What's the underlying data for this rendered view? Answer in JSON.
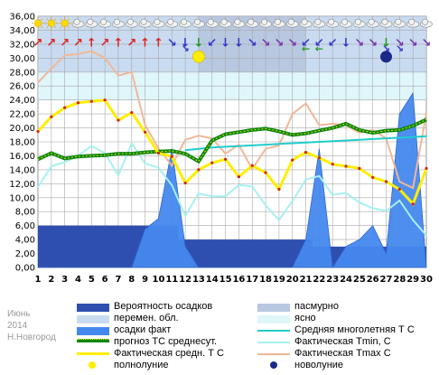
{
  "chart_data": {
    "type": "line",
    "title": "",
    "xlabel": "",
    "ylabel": "",
    "xlim": [
      1,
      30
    ],
    "ylim": [
      0,
      36
    ],
    "y_ticks": [
      "0,00",
      "2,00",
      "4,00",
      "6,00",
      "8,00",
      "10,00",
      "12,00",
      "14,00",
      "16,00",
      "18,00",
      "20,00",
      "22,00",
      "24,00",
      "26,00",
      "28,00",
      "30,00",
      "32,00",
      "34,00",
      "36,00"
    ],
    "x_ticks": [
      "1",
      "2",
      "3",
      "4",
      "5",
      "6",
      "7",
      "8",
      "9",
      "10",
      "11",
      "12",
      "13",
      "14",
      "15",
      "16",
      "17",
      "18",
      "19",
      "20",
      "21",
      "22",
      "23",
      "24",
      "25",
      "26",
      "27",
      "28",
      "29",
      "30"
    ],
    "grid": true,
    "sky_band": [
      {
        "day_from": 1,
        "day_to": 13,
        "state": "перемен. обл."
      },
      {
        "day_from": 13,
        "day_to": 21,
        "state": "пасмурно"
      },
      {
        "day_from": 21,
        "day_to": 30,
        "state": "перемен. обл."
      }
    ],
    "series": [
      {
        "name": "Вероятность осадков",
        "color": "#3355bb",
        "x": [
          1,
          2,
          3,
          4,
          5,
          6,
          7,
          8,
          9,
          10,
          11,
          12,
          13,
          14,
          15,
          16,
          17,
          18,
          19,
          20,
          21,
          22,
          23,
          24,
          25,
          26,
          27,
          28,
          29,
          30
        ],
        "values": [
          6,
          6,
          6,
          6,
          6,
          6,
          6,
          6,
          6,
          6,
          6,
          4,
          4,
          4,
          4,
          4,
          4,
          4,
          4,
          4,
          4,
          3,
          3,
          3,
          3,
          3,
          3,
          3,
          3,
          3
        ]
      },
      {
        "name": "осадки факт",
        "color": "#4488ee",
        "x": [
          1,
          2,
          3,
          4,
          5,
          6,
          7,
          8,
          9,
          10,
          11,
          12,
          13,
          14,
          15,
          16,
          17,
          18,
          19,
          20,
          21,
          22,
          23,
          24,
          25,
          26,
          27,
          28,
          29,
          30
        ],
        "values": [
          0,
          0,
          0,
          0,
          0,
          0,
          0,
          0,
          5.5,
          7,
          17,
          3,
          0,
          0,
          0,
          0,
          0,
          0,
          0,
          0,
          4,
          17,
          0,
          3,
          4,
          6,
          2,
          22,
          25,
          0
        ]
      },
      {
        "name": "прогноз ТС среднесут.",
        "color": "#118811",
        "x": [
          1,
          2,
          3,
          4,
          5,
          6,
          7,
          8,
          9,
          10,
          11,
          12,
          13,
          14,
          15,
          16,
          17,
          18,
          19,
          20,
          21,
          22,
          23,
          24,
          25,
          26,
          27,
          28,
          29,
          30
        ],
        "values": [
          15.5,
          16.4,
          15.6,
          15.9,
          16,
          16.1,
          16.3,
          16.3,
          16.5,
          16.6,
          16.7,
          16.3,
          15.2,
          18.2,
          19.1,
          19.4,
          19.7,
          19.9,
          19.5,
          19,
          19.2,
          19.6,
          20,
          20.6,
          19.7,
          19.3,
          19.6,
          19.7,
          20.3,
          21.2
        ]
      },
      {
        "name": "Средняя многолетняя Т С",
        "color": "#22cccc",
        "x": [
          12,
          13,
          14,
          15,
          16,
          17,
          18,
          19,
          20,
          21,
          22,
          23,
          24,
          25,
          26,
          27,
          28,
          29,
          30
        ],
        "values": [
          16.8,
          17.0,
          17.2,
          17.3,
          17.4,
          17.5,
          17.6,
          17.7,
          17.8,
          17.9,
          18.0,
          18.1,
          18.2,
          18.3,
          18.4,
          18.5,
          18.6,
          18.7,
          18.8
        ]
      },
      {
        "name": "Фактическая Tmin, С",
        "color": "#a6f0f0",
        "x": [
          1,
          2,
          3,
          4,
          5,
          6,
          7,
          8,
          9,
          10,
          11,
          12,
          13,
          14,
          15,
          16,
          17,
          18,
          19,
          20,
          21,
          22,
          23,
          24,
          25,
          26,
          27,
          28,
          29,
          30
        ],
        "values": [
          11.5,
          14.5,
          15.1,
          16,
          17.4,
          16.4,
          13.2,
          17.8,
          14.9,
          14.3,
          11.8,
          7.4,
          10.6,
          10.2,
          10.2,
          11.8,
          11.6,
          8.9,
          6.8,
          9.5,
          12.6,
          13.1,
          10.4,
          10.7,
          9.3,
          8.5,
          8.1,
          9.6,
          6.8,
          4.6
        ]
      },
      {
        "name": "Фактическая Tmax C",
        "color": "#f0b898",
        "x": [
          1,
          2,
          3,
          4,
          5,
          6,
          7,
          8,
          9,
          10,
          11,
          12,
          13,
          14,
          15,
          16,
          17,
          18,
          19,
          20,
          21,
          22,
          23,
          24,
          25,
          26,
          27,
          28,
          29,
          30
        ],
        "values": [
          26.5,
          28.5,
          30.4,
          30.6,
          31,
          30,
          27.5,
          28,
          20.4,
          17.1,
          14.6,
          18.3,
          18.9,
          18.5,
          16.3,
          17.6,
          14.1,
          17,
          17.5,
          22,
          23.5,
          20.4,
          20.6,
          20.4,
          19.3,
          19.7,
          18.5,
          12.3,
          11.4,
          22.1
        ]
      },
      {
        "name": "Фактическая средн. Т С",
        "color": "#ffee00",
        "x": [
          1,
          2,
          3,
          4,
          5,
          6,
          7,
          8,
          9,
          10,
          11,
          12,
          13,
          14,
          15,
          16,
          17,
          18,
          19,
          20,
          21,
          22,
          23,
          24,
          25,
          26,
          27,
          28,
          29,
          30
        ],
        "values": [
          19.5,
          21.6,
          22.9,
          23.6,
          23.8,
          24,
          21.1,
          22.2,
          19.4,
          16.4,
          15.9,
          12.1,
          14,
          15,
          15.5,
          13,
          14.6,
          13.6,
          11.2,
          15.4,
          16.5,
          15.7,
          14.8,
          14.5,
          14.2,
          12.9,
          12.3,
          11.2,
          9.1,
          14.2
        ]
      }
    ],
    "full_moon_day": 13,
    "new_moon_day": 27,
    "moon_level": 30.2,
    "weather_icons": {
      "sun_days": [
        1,
        2,
        3
      ],
      "cloud_days": [
        4,
        5,
        6,
        7,
        8,
        9,
        10,
        11,
        12,
        13,
        14,
        15,
        16,
        17,
        18,
        19,
        20,
        21,
        22,
        23,
        24,
        25,
        26,
        27,
        28,
        29,
        30
      ]
    },
    "wind_arrows": [
      {
        "day": 1,
        "dir": "↗",
        "color": "#dd2222"
      },
      {
        "day": 2,
        "dir": "↗",
        "color": "#dd2222"
      },
      {
        "day": 3,
        "dir": "↗",
        "color": "#dd2222"
      },
      {
        "day": 4,
        "dir": "↗",
        "color": "#dd2222"
      },
      {
        "day": 5,
        "dir": "↑",
        "color": "#dd2222"
      },
      {
        "day": 6,
        "dir": "↗",
        "color": "#dd2222"
      },
      {
        "day": 7,
        "dir": "↑",
        "color": "#dd2222"
      },
      {
        "day": 8,
        "dir": "↗",
        "color": "#dd2222"
      },
      {
        "day": 9,
        "dir": "↑",
        "color": "#dd2222"
      },
      {
        "day": 10,
        "dir": "↑",
        "color": "#dd2222"
      },
      {
        "day": 11,
        "dir": "↘",
        "color": "#3333cc"
      },
      {
        "day": 12,
        "dir": "↓",
        "color": "#3333cc"
      },
      {
        "day": 13,
        "dir": "↓",
        "color": "#229922"
      },
      {
        "day": 14,
        "dir": "↙",
        "color": "#3333cc"
      },
      {
        "day": 15,
        "dir": "↓",
        "color": "#3333cc"
      },
      {
        "day": 16,
        "dir": "↓",
        "color": "#3333cc"
      },
      {
        "day": 17,
        "dir": "↘",
        "color": "#3333cc"
      },
      {
        "day": 18,
        "dir": "↘",
        "color": "#7733aa"
      },
      {
        "day": 19,
        "dir": "↘",
        "color": "#7733aa"
      },
      {
        "day": 20,
        "dir": "↘",
        "color": "#7733aa"
      },
      {
        "day": 21,
        "dir": "↙",
        "color": "#3333cc"
      },
      {
        "day": 22,
        "dir": "↙",
        "color": "#3333cc"
      },
      {
        "day": 23,
        "dir": "↙",
        "color": "#3333cc"
      },
      {
        "day": 24,
        "dir": "↓",
        "color": "#3333cc"
      },
      {
        "day": 25,
        "dir": "↘",
        "color": "#7733aa"
      },
      {
        "day": 26,
        "dir": "↘",
        "color": "#7733aa"
      },
      {
        "day": 27,
        "dir": "↓",
        "color": "#229922"
      },
      {
        "day": 28,
        "dir": "↘",
        "color": "#7733aa"
      },
      {
        "day": 29,
        "dir": "↘",
        "color": "#7733aa"
      },
      {
        "day": 30,
        "dir": "↘",
        "color": "#7733aa"
      }
    ],
    "mid_wind_arrows": [
      {
        "day": 12,
        "dir": "↘",
        "color": "#3333cc"
      },
      {
        "day": 21,
        "dir": "←",
        "color": "#229922"
      },
      {
        "day": 22,
        "dir": "←",
        "color": "#229922"
      },
      {
        "day": 27,
        "dir": "↘",
        "color": "#3333cc"
      },
      {
        "day": 28,
        "dir": "↘",
        "color": "#3333cc"
      }
    ],
    "colors": {
      "plot_bg": "#ffffff",
      "variable_cloud": "#c9dbf0",
      "overcast": "#b8c8e0",
      "clear": "#dff6fb",
      "grid": "#a8a8a8",
      "full_moon": "#ffee00",
      "new_moon": "#1a2a88"
    }
  },
  "watermark": {
    "month": "Июнь",
    "year": "2014",
    "city": "Н.Новгород"
  },
  "legend": {
    "precip_prob": "Вероятность осадков",
    "overcast": "пасмурно",
    "variable": "перемен. обл.",
    "clear": "ясно",
    "precip_fact": "осадки факт",
    "clim_mean": "Средняя многолетняя Т С",
    "forecast": "прогноз ТС среднесут.",
    "tmin": "Фактическая Tmin, С",
    "tmean": "Фактическая средн. Т С",
    "tmax": "Фактическая Tmax C",
    "full_moon": "полнолуние",
    "new_moon": "новолуние"
  }
}
